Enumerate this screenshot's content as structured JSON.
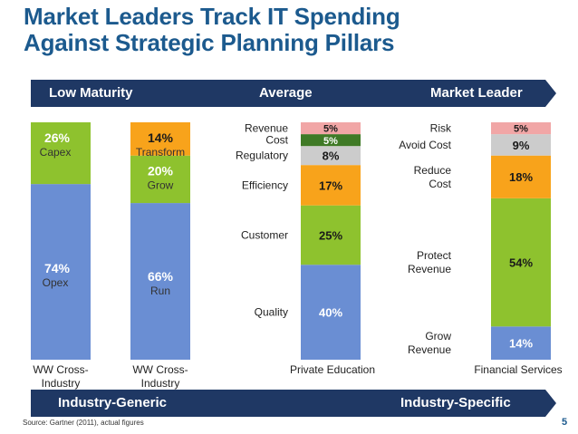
{
  "title": {
    "line1": "Market Leaders Track IT Spending",
    "line2": "Against Strategic Planning Pillars"
  },
  "top_arrow": {
    "left": "Low Maturity",
    "mid": "Average",
    "right": "Market Leader"
  },
  "bottom_arrow": {
    "left": "Industry-Generic",
    "right": "Industry-Specific"
  },
  "source": "Source: Gartner (2011), actual figures",
  "page_number": "5",
  "colors": {
    "blue": "#6a8ed3",
    "green": "#8ec22e",
    "orange": "#f8a31b",
    "darkgreen": "#3f7a26",
    "pink": "#f1a6a6",
    "gray": "#cccccc",
    "navy": "#1f3864",
    "title": "#1c5a8e",
    "pct_white": "#ffffff",
    "pct_dark": "#1a1a1a"
  },
  "chart_data": {
    "type": "stacked-bar",
    "title": "Market Leaders Track IT Spending Against Strategic Planning Pillars",
    "unit": "%",
    "bars": [
      {
        "name": "WW Cross-Industry",
        "label_lines": [
          "WW Cross-",
          "Industry"
        ],
        "segments": [
          {
            "value": 74,
            "pct": "74%",
            "name": "Opex",
            "color": "blue",
            "text": "white"
          },
          {
            "value": 26,
            "pct": "26%",
            "name": "Capex",
            "color": "green",
            "text": "white"
          }
        ]
      },
      {
        "name": "WW Cross-Industry",
        "label_lines": [
          "WW Cross-",
          "Industry"
        ],
        "segments": [
          {
            "value": 66,
            "pct": "66%",
            "name": "Run",
            "color": "blue",
            "text": "white"
          },
          {
            "value": 20,
            "pct": "20%",
            "name": "Grow",
            "color": "green",
            "text": "white"
          },
          {
            "value": 14,
            "pct": "14%",
            "name": "Transform",
            "color": "orange",
            "text": "dark"
          }
        ]
      },
      {
        "name": "Private Education",
        "label_lines": [
          "Private Education"
        ],
        "segments": [
          {
            "value": 40,
            "pct": "40%",
            "name": "Quality",
            "color": "blue",
            "text": "white",
            "side_label": [
              "Quality"
            ]
          },
          {
            "value": 25,
            "pct": "25%",
            "name": "Customer",
            "color": "green",
            "text": "dark",
            "side_label": [
              "Customer"
            ]
          },
          {
            "value": 17,
            "pct": "17%",
            "name": "Efficiency",
            "color": "orange",
            "text": "dark",
            "side_label": [
              "Efficiency"
            ]
          },
          {
            "value": 8,
            "pct": "8%",
            "name": "Regulatory",
            "color": "gray",
            "text": "dark",
            "side_label": [
              "Regulatory"
            ]
          },
          {
            "value": 5,
            "pct": "5%",
            "name": "Cost",
            "color": "darkgreen",
            "text": "white",
            "side_label": [
              "Cost"
            ]
          },
          {
            "value": 5,
            "pct": "5%",
            "name": "Revenue",
            "color": "pink",
            "text": "dark",
            "side_label": [
              "Revenue"
            ]
          }
        ]
      },
      {
        "name": "Financial Services",
        "label_lines": [
          "Financial Services"
        ],
        "segments": [
          {
            "value": 14,
            "pct": "14%",
            "name": "Grow Revenue",
            "color": "blue",
            "text": "white",
            "side_label": [
              "Grow",
              "Revenue"
            ]
          },
          {
            "value": 54,
            "pct": "54%",
            "name": "Protect Revenue",
            "color": "green",
            "text": "dark",
            "side_label": [
              "Protect",
              "Revenue"
            ]
          },
          {
            "value": 18,
            "pct": "18%",
            "name": "Reduce Cost",
            "color": "orange",
            "text": "dark",
            "side_label": [
              "Reduce",
              "Cost"
            ]
          },
          {
            "value": 9,
            "pct": "9%",
            "name": "Avoid Cost",
            "color": "gray",
            "text": "dark",
            "side_label": [
              "Avoid Cost"
            ]
          },
          {
            "value": 5,
            "pct": "5%",
            "name": "Risk",
            "color": "pink",
            "text": "dark",
            "side_label": [
              "Risk"
            ]
          }
        ]
      }
    ]
  }
}
